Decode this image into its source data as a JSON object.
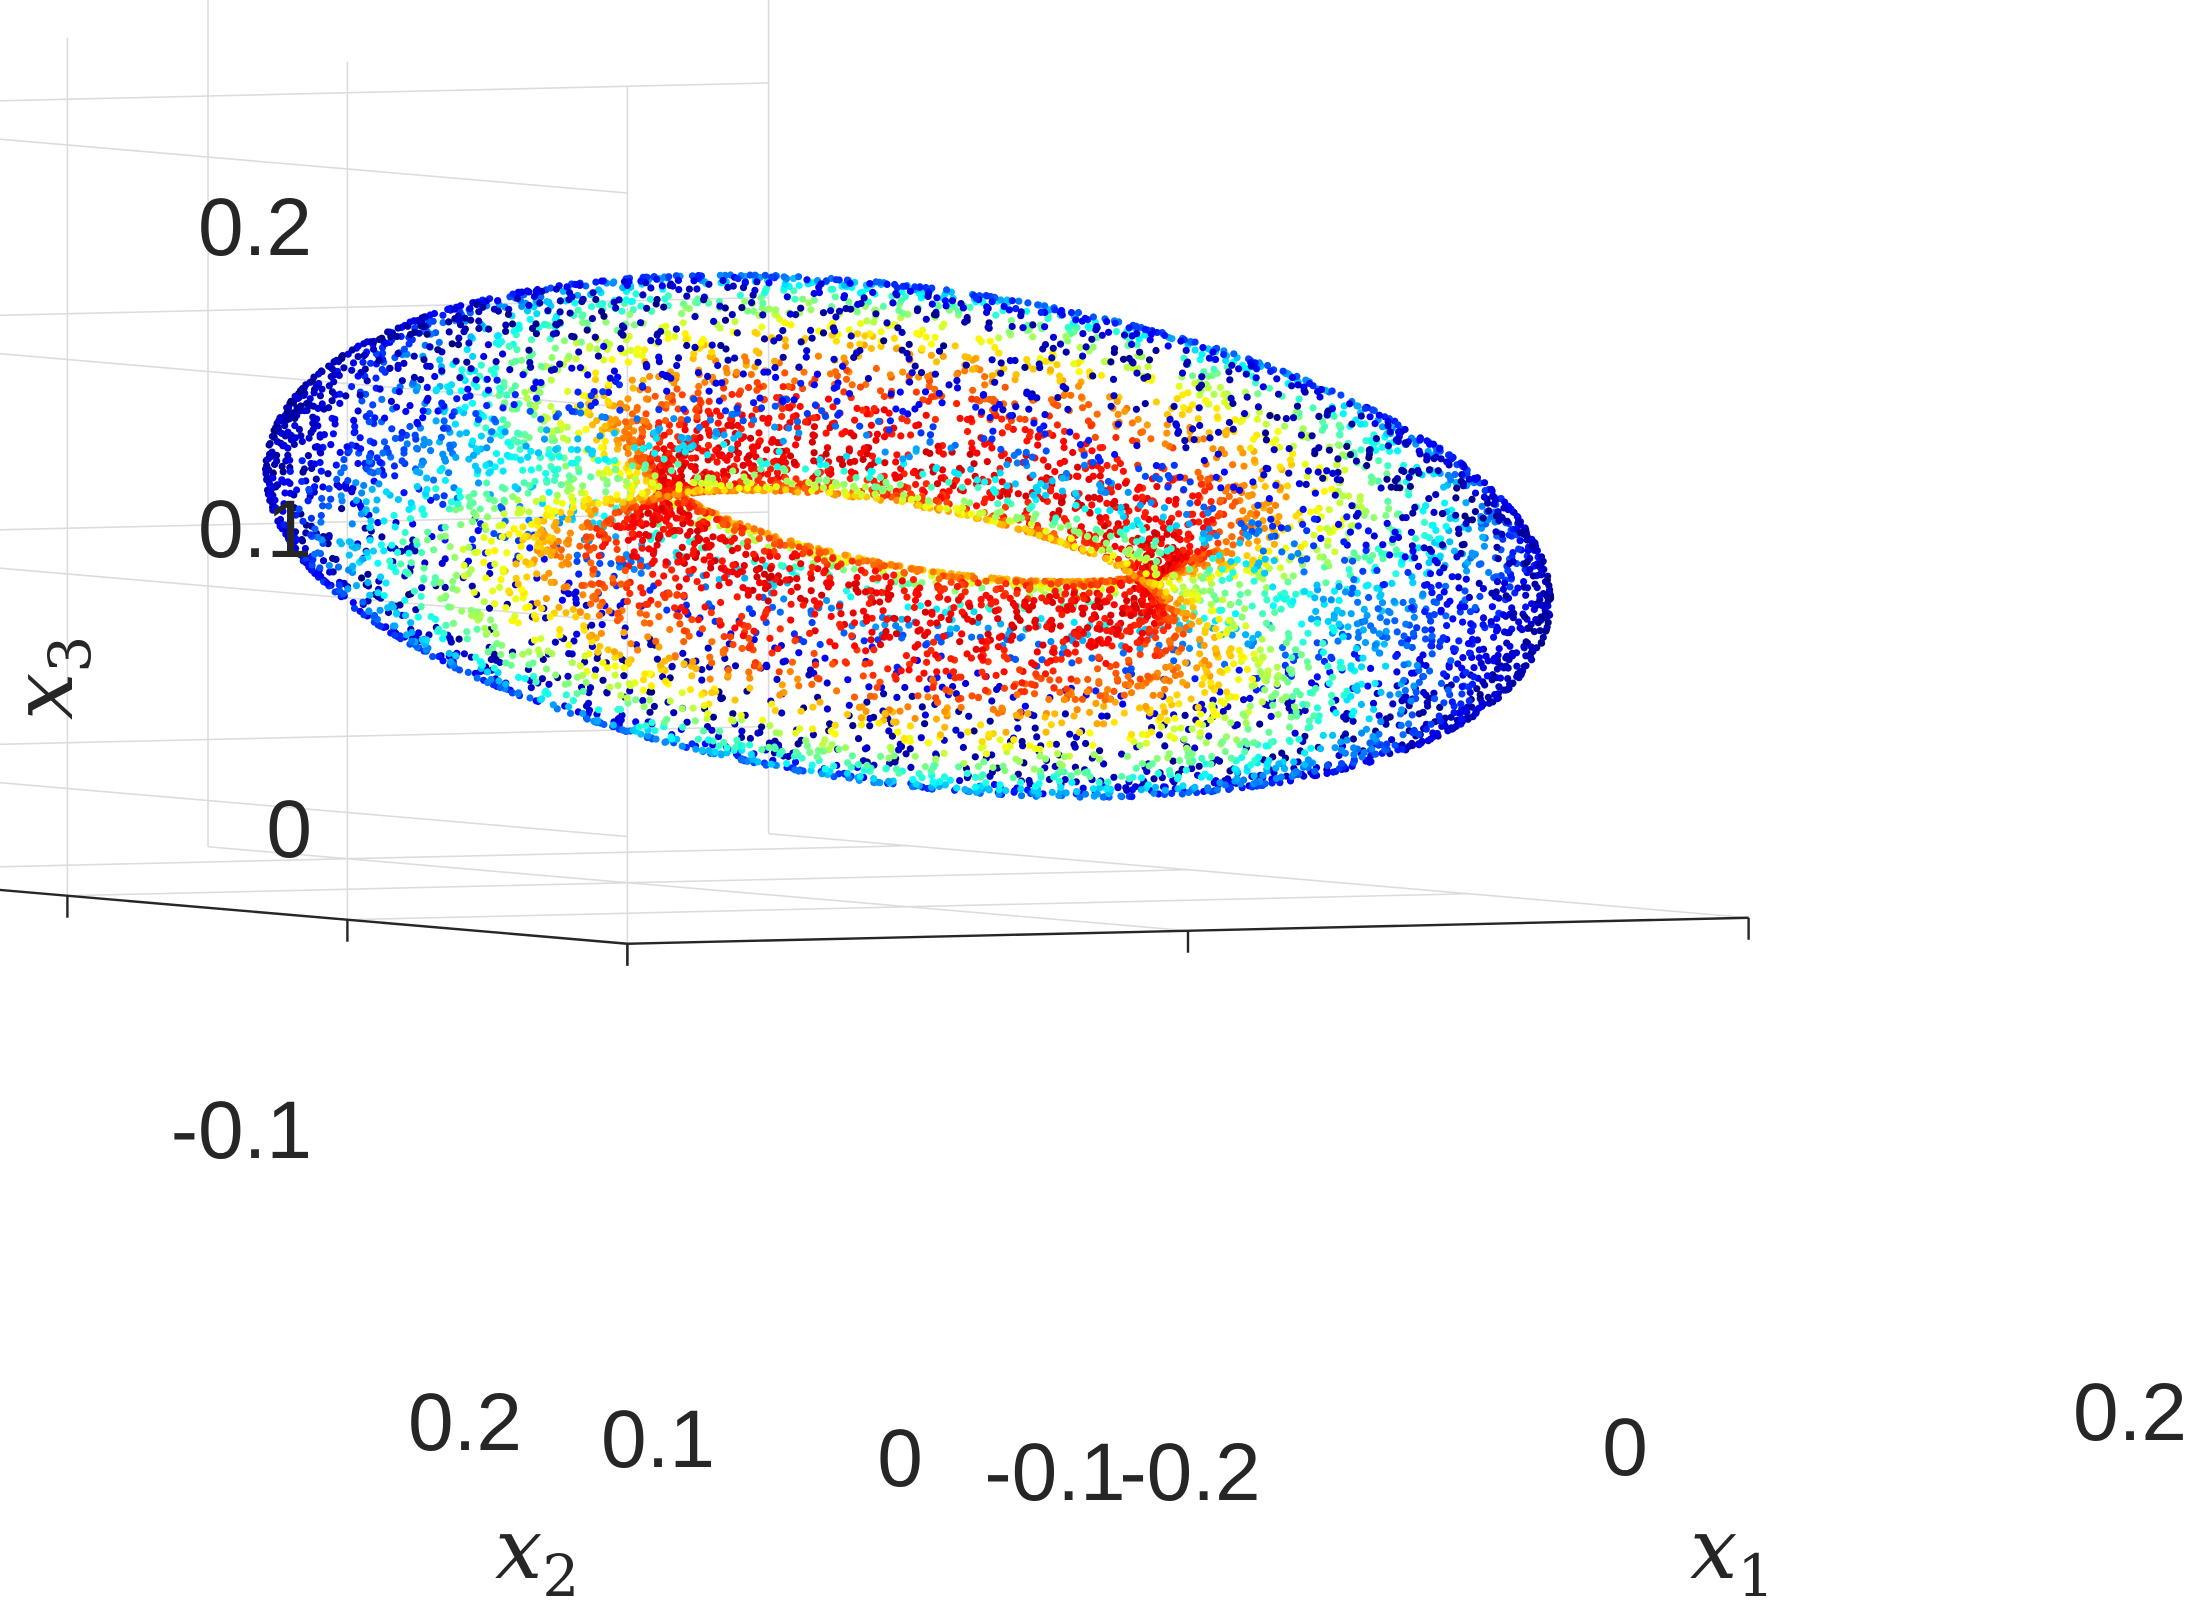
{
  "chart_data": {
    "type": "scatter",
    "projection": "3d",
    "title": "",
    "description": "torus point cloud, points coloured by a jet colormap",
    "colormap": "jet",
    "grid": true,
    "legend": "none",
    "axes": {
      "x1": {
        "label": "x",
        "label_subscript": "1",
        "ticks": [
          -0.2,
          0,
          0.2
        ],
        "tick_labels": [
          "-0.2",
          "0",
          "0.2"
        ],
        "lim": [
          -0.2,
          0.2
        ]
      },
      "x2": {
        "label": "x",
        "label_subscript": "2",
        "ticks": [
          -0.1,
          0,
          0.1,
          0.2
        ],
        "tick_labels": [
          "-0.1",
          "0",
          "0.1",
          "0.2"
        ],
        "lim": [
          -0.1,
          0.25
        ]
      },
      "x3": {
        "label": "x",
        "label_subscript": "3",
        "ticks": [
          -0.1,
          0,
          0.1,
          0.2
        ],
        "tick_labels": [
          "-0.1",
          "0",
          "0.1",
          "0.2"
        ],
        "lim": [
          -0.15,
          0.25
        ]
      }
    },
    "torus": {
      "center": [
        0.02,
        0.02,
        0.02
      ],
      "major_radius": 0.115,
      "minor_radius": 0.05,
      "point_count": 9000
    }
  }
}
